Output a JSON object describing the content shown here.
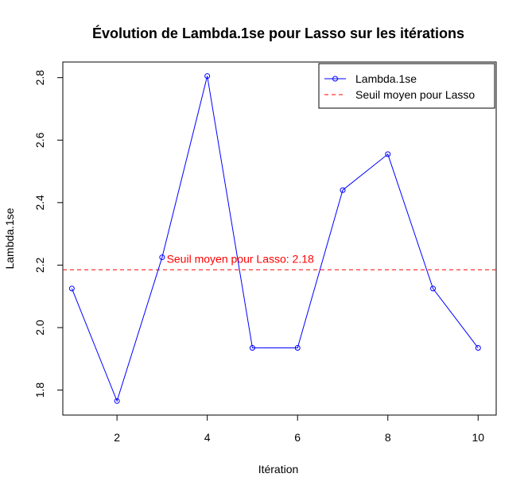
{
  "chart_data": {
    "type": "line",
    "title": "Évolution de Lambda.1se pour Lasso sur les itérations",
    "xlabel": "Itération",
    "ylabel": "Lambda.1se",
    "xlim": [
      0.8,
      10.4
    ],
    "ylim": [
      1.72,
      2.85
    ],
    "xticks": [
      2,
      4,
      6,
      8,
      10
    ],
    "xtick_labels": [
      "2",
      "4",
      "6",
      "8",
      "10"
    ],
    "yticks": [
      1.8,
      2.0,
      2.2,
      2.4,
      2.6,
      2.8
    ],
    "ytick_labels": [
      "1.8",
      "2.0",
      "2.2",
      "2.4",
      "2.6",
      "2.8"
    ],
    "grid": false,
    "legend_position": "top-right",
    "x": [
      1,
      2,
      3,
      4,
      5,
      6,
      7,
      8,
      9,
      10
    ],
    "series": [
      {
        "name": "Lambda.1se",
        "color": "#0000ff",
        "marker": "open-circle",
        "values": [
          2.125,
          1.765,
          2.225,
          2.805,
          1.935,
          1.935,
          2.44,
          2.555,
          2.125,
          1.935
        ]
      }
    ],
    "threshold": {
      "name": "Seuil moyen pour Lasso",
      "value": 2.185,
      "color": "#ff0000",
      "style": "dashed",
      "annotation": "Seuil moyen pour Lasso: 2.18",
      "annotation_x": 3.1
    }
  }
}
